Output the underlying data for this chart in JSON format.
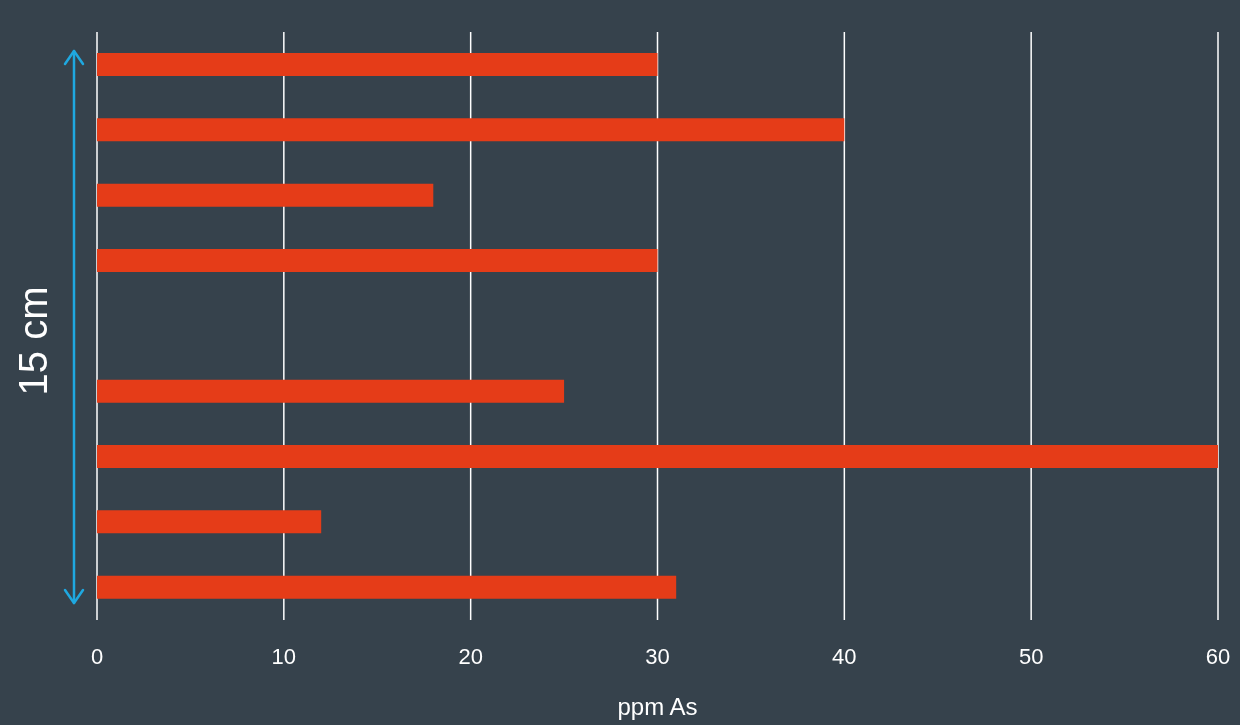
{
  "chart_data": {
    "type": "bar",
    "orientation": "horizontal",
    "xlabel": "ppm As",
    "ylabel": "15 cm",
    "categories": [
      null,
      null,
      null,
      null,
      null,
      null,
      null,
      null,
      null
    ],
    "values": [
      30,
      40,
      18,
      30,
      null,
      25,
      60,
      12,
      31
    ],
    "color": "#e53c18",
    "xlim": [
      0,
      60
    ],
    "xticks": [
      0,
      10,
      20,
      30,
      40,
      50,
      60
    ],
    "grid": "x",
    "tick_labels": "x"
  }
}
